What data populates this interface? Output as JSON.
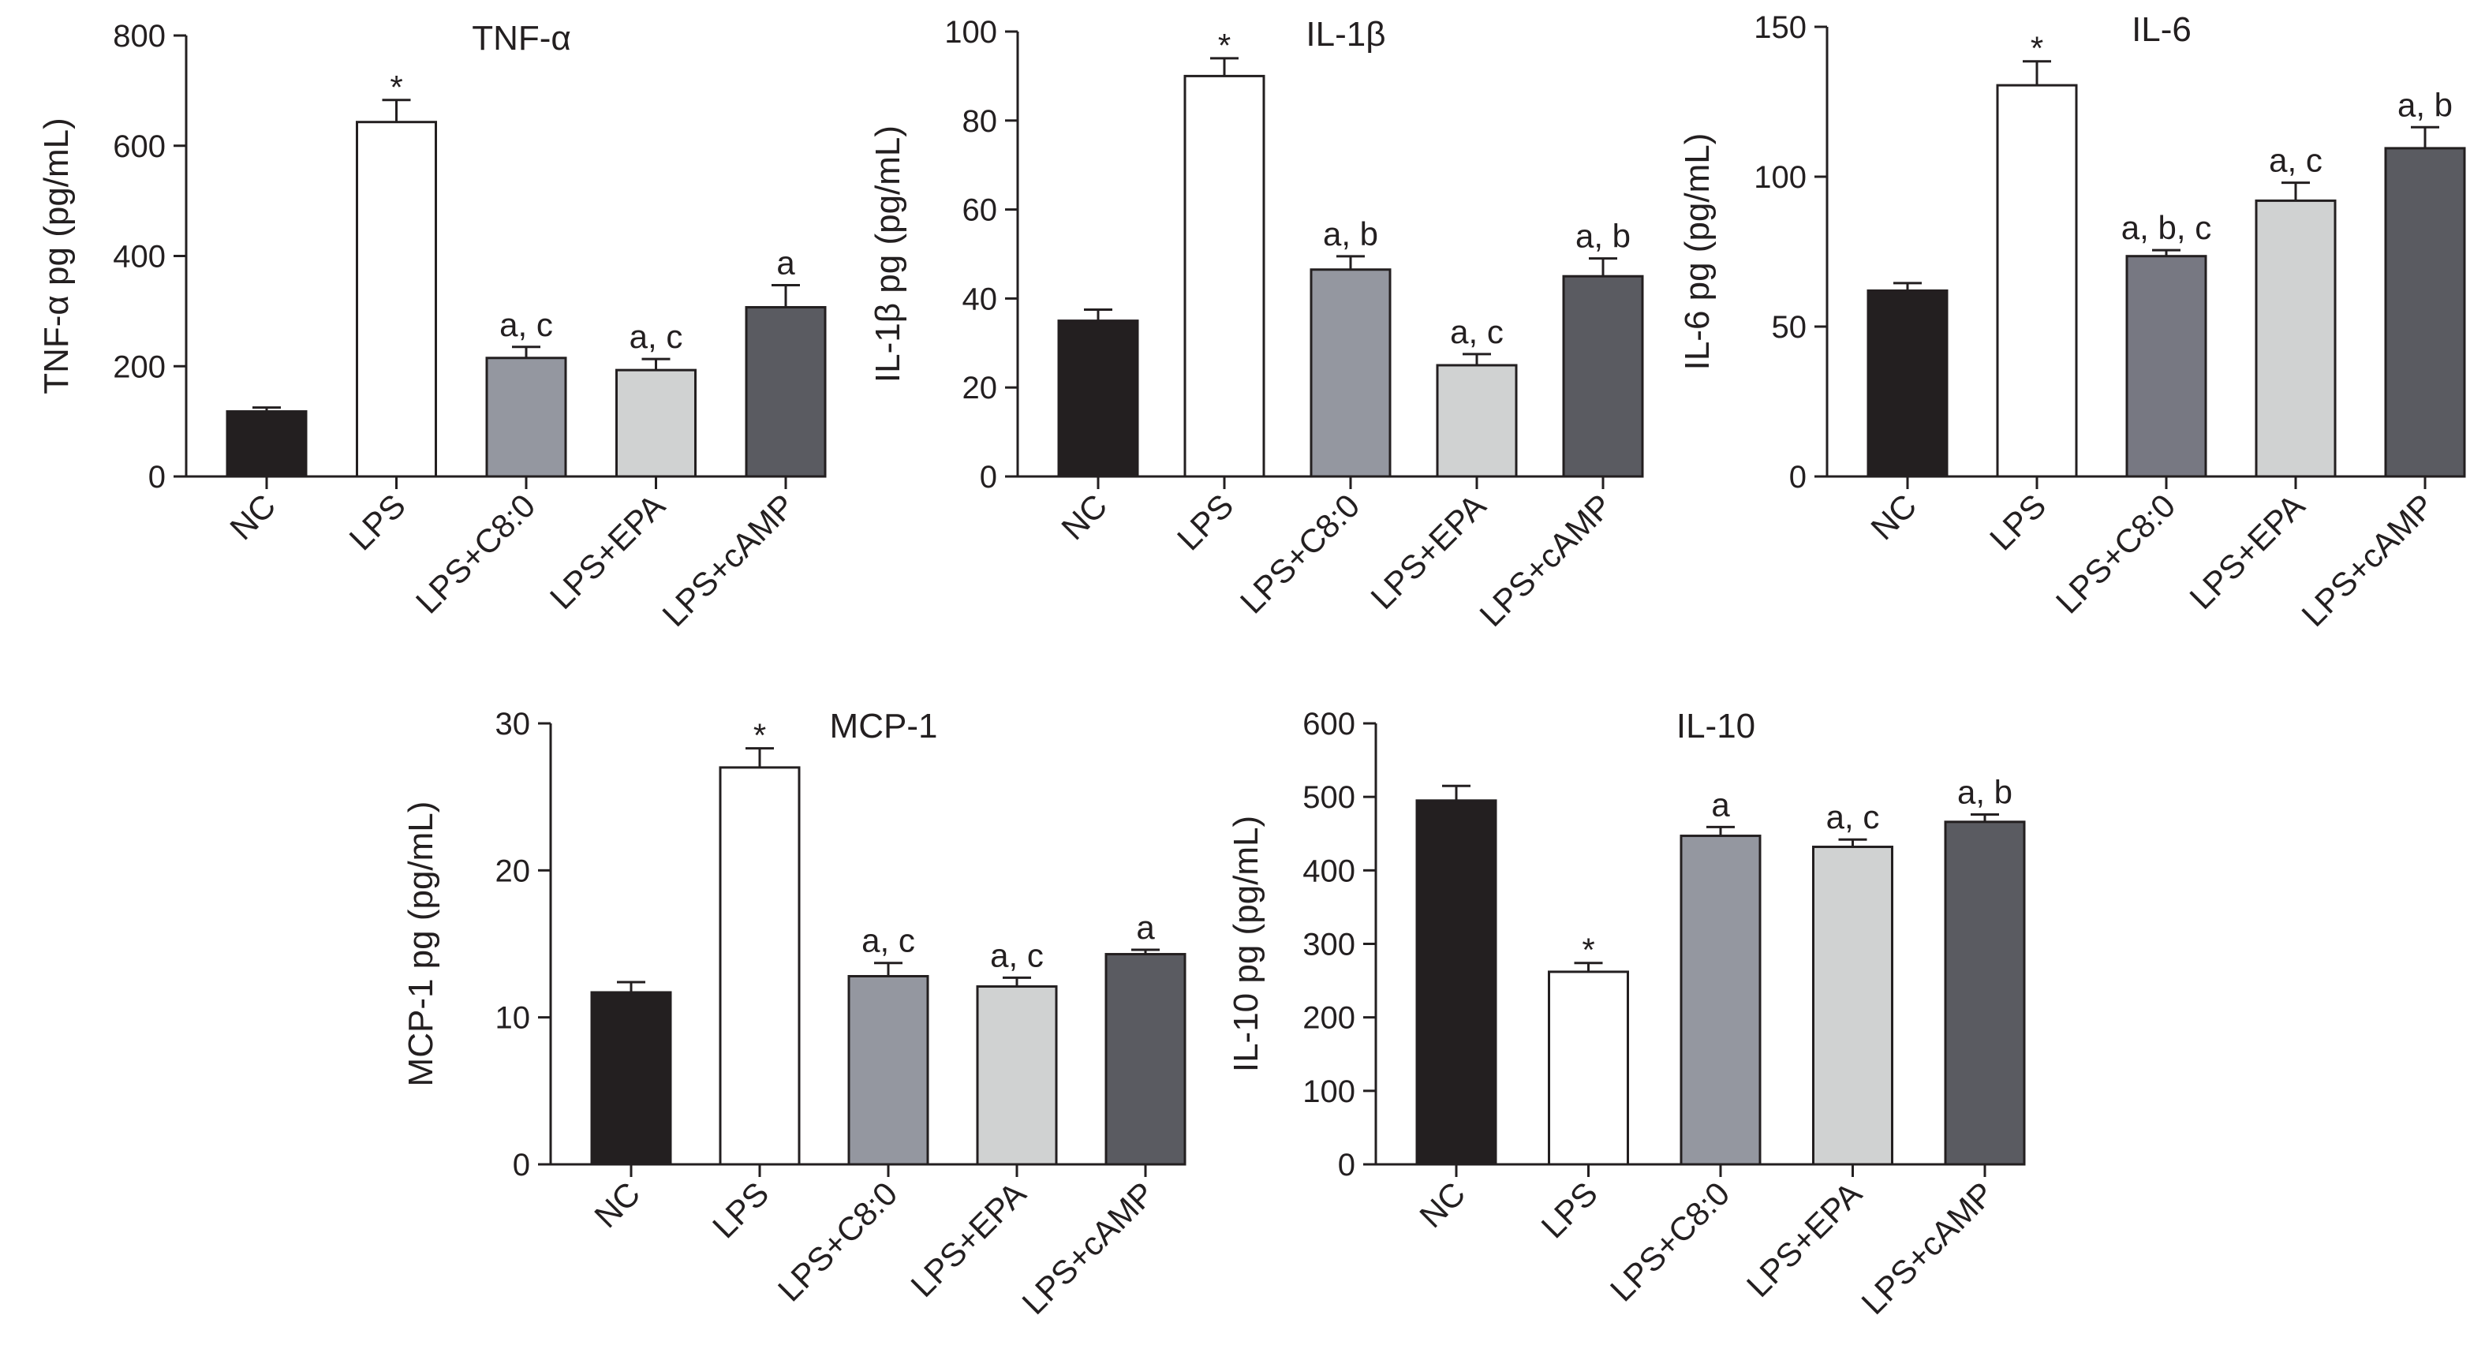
{
  "chart_data": [
    {
      "type": "bar",
      "title": "TNF-α",
      "ylabel": "TNF-α pg (pg/mL)",
      "xlabel": "",
      "ylim": [
        0,
        800
      ],
      "yticks": [
        0,
        200,
        400,
        600,
        800
      ],
      "categories": [
        "NC",
        "LPS",
        "LPS+C8:0",
        "LPS+EPA",
        "LPS+cAMP"
      ],
      "values": [
        118,
        643,
        215,
        193,
        307
      ],
      "errors": [
        7,
        40,
        20,
        20,
        40
      ],
      "annotations": [
        "",
        "*",
        "a, c",
        "a, c",
        "a"
      ],
      "colors": [
        "#231f20",
        "#ffffff",
        "#9497a0",
        "#d0d2d2",
        "#5a5b61"
      ],
      "grid": false
    },
    {
      "type": "bar",
      "title": "IL-1β",
      "ylabel": "IL-1β pg (pg/mL)",
      "xlabel": "",
      "ylim": [
        0,
        100
      ],
      "yticks": [
        0,
        20,
        40,
        60,
        80,
        100
      ],
      "categories": [
        "NC",
        "LPS",
        "LPS+C8:0",
        "LPS+EPA",
        "LPS+cAMP"
      ],
      "values": [
        35,
        90,
        46.5,
        25,
        45
      ],
      "errors": [
        2.5,
        4,
        3,
        2.5,
        4
      ],
      "annotations": [
        "",
        "*",
        "a, b",
        "a, c",
        "a, b"
      ],
      "colors": [
        "#231f20",
        "#ffffff",
        "#9497a0",
        "#d0d2d2",
        "#5a5b61"
      ],
      "grid": false
    },
    {
      "type": "bar",
      "title": "IL-6",
      "ylabel": "IL-6 pg (pg/mL)",
      "xlabel": "",
      "ylim": [
        0,
        150
      ],
      "yticks": [
        0,
        50,
        100,
        150
      ],
      "categories": [
        "NC",
        "LPS",
        "LPS+C8:0",
        "LPS+EPA",
        "LPS+cAMP"
      ],
      "values": [
        62,
        130.5,
        73.5,
        92,
        109.5
      ],
      "errors": [
        2.5,
        8,
        2,
        6,
        7
      ],
      "annotations": [
        "",
        "*",
        "a, b, c",
        "a, c",
        "a, b"
      ],
      "colors": [
        "#231f20",
        "#ffffff",
        "#777882",
        "#d0d2d2",
        "#5a5b61"
      ],
      "grid": false
    },
    {
      "type": "bar",
      "title": "MCP-1",
      "ylabel": "MCP-1 pg (pg/mL)",
      "xlabel": "",
      "ylim": [
        0,
        30
      ],
      "yticks": [
        0,
        10,
        20,
        30
      ],
      "categories": [
        "NC",
        "LPS",
        "LPS+C8:0",
        "LPS+EPA",
        "LPS+cAMP"
      ],
      "values": [
        11.7,
        27,
        12.8,
        12.1,
        14.3
      ],
      "errors": [
        0.7,
        1.3,
        0.9,
        0.6,
        0.3
      ],
      "annotations": [
        "",
        "*",
        "a, c",
        "a, c",
        "a"
      ],
      "colors": [
        "#231f20",
        "#ffffff",
        "#9497a0",
        "#d0d2d2",
        "#5a5b61"
      ],
      "grid": false
    },
    {
      "type": "bar",
      "title": "IL-10",
      "ylabel": "IL-10 pg (pg/mL)",
      "xlabel": "",
      "ylim": [
        0,
        600
      ],
      "yticks": [
        0,
        100,
        200,
        300,
        400,
        500,
        600
      ],
      "categories": [
        "NC",
        "LPS",
        "LPS+C8:0",
        "LPS+EPA",
        "LPS+cAMP"
      ],
      "values": [
        495,
        262,
        447,
        432,
        466
      ],
      "errors": [
        20,
        12,
        12,
        10,
        10
      ],
      "annotations": [
        "",
        "*",
        "a",
        "a, c",
        "a, b"
      ],
      "colors": [
        "#231f20",
        "#ffffff",
        "#9497a0",
        "#d0d2d2",
        "#5a5b61"
      ],
      "grid": false
    }
  ]
}
